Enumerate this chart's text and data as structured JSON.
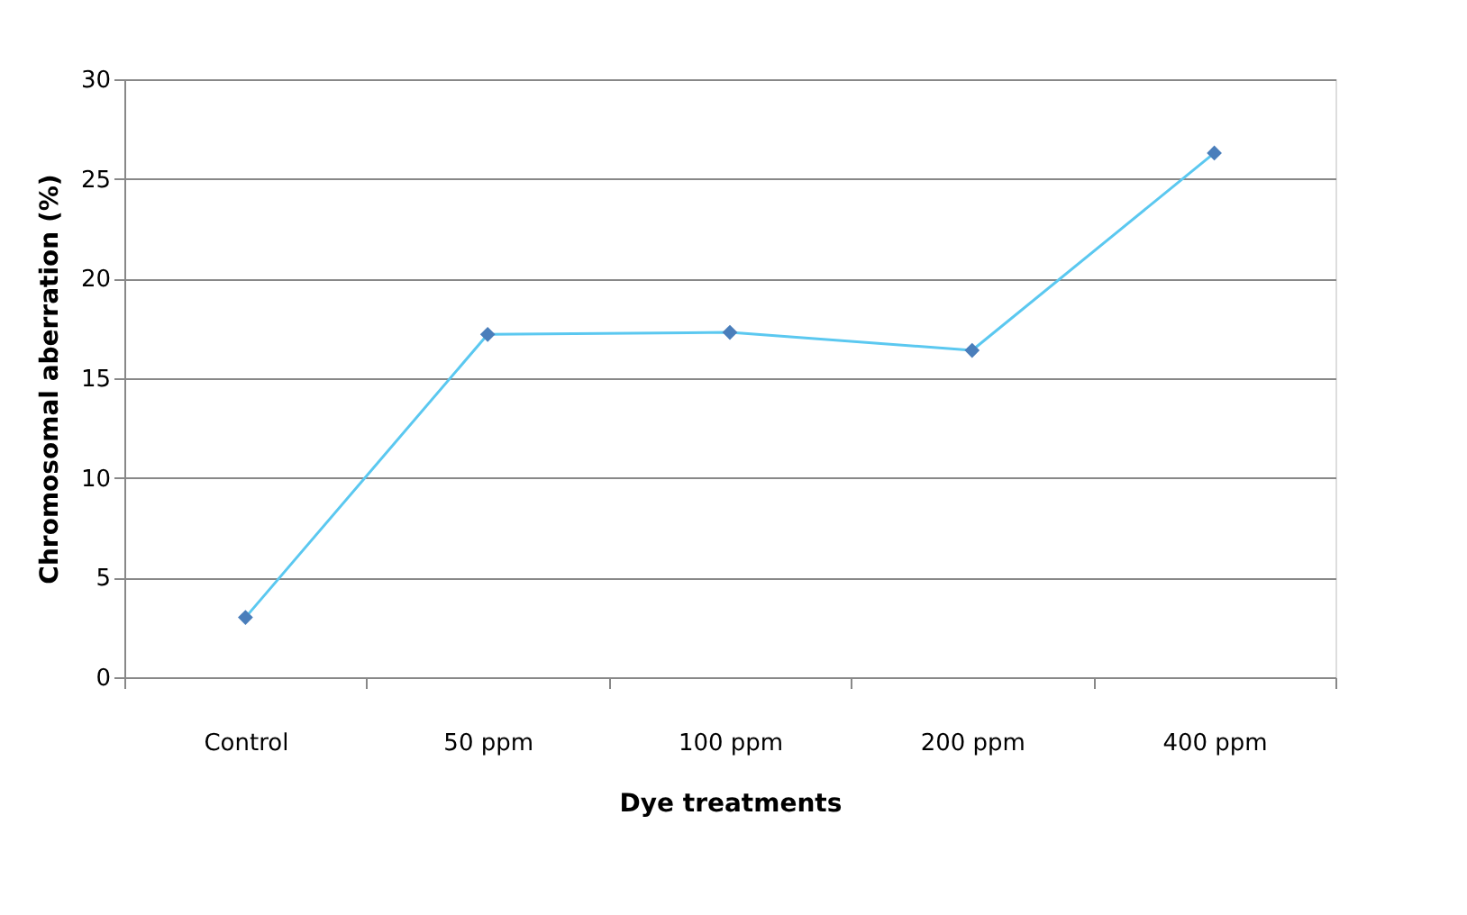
{
  "chart_data": {
    "type": "line",
    "xlabel": "Dye treatments",
    "ylabel": "Chromosomal aberration (%)",
    "categories": [
      "Control",
      "50 ppm",
      "100 ppm",
      "200 ppm",
      "400 ppm"
    ],
    "series": [
      {
        "color": "#5bc8f0",
        "values": [
          3.0,
          17.2,
          17.3,
          16.4,
          26.3
        ]
      }
    ],
    "ylim": [
      0,
      30
    ],
    "yticks": [
      0,
      5,
      10,
      15,
      20,
      25,
      30
    ],
    "grid": "y",
    "marker": "diamond",
    "line_style": "solid"
  }
}
